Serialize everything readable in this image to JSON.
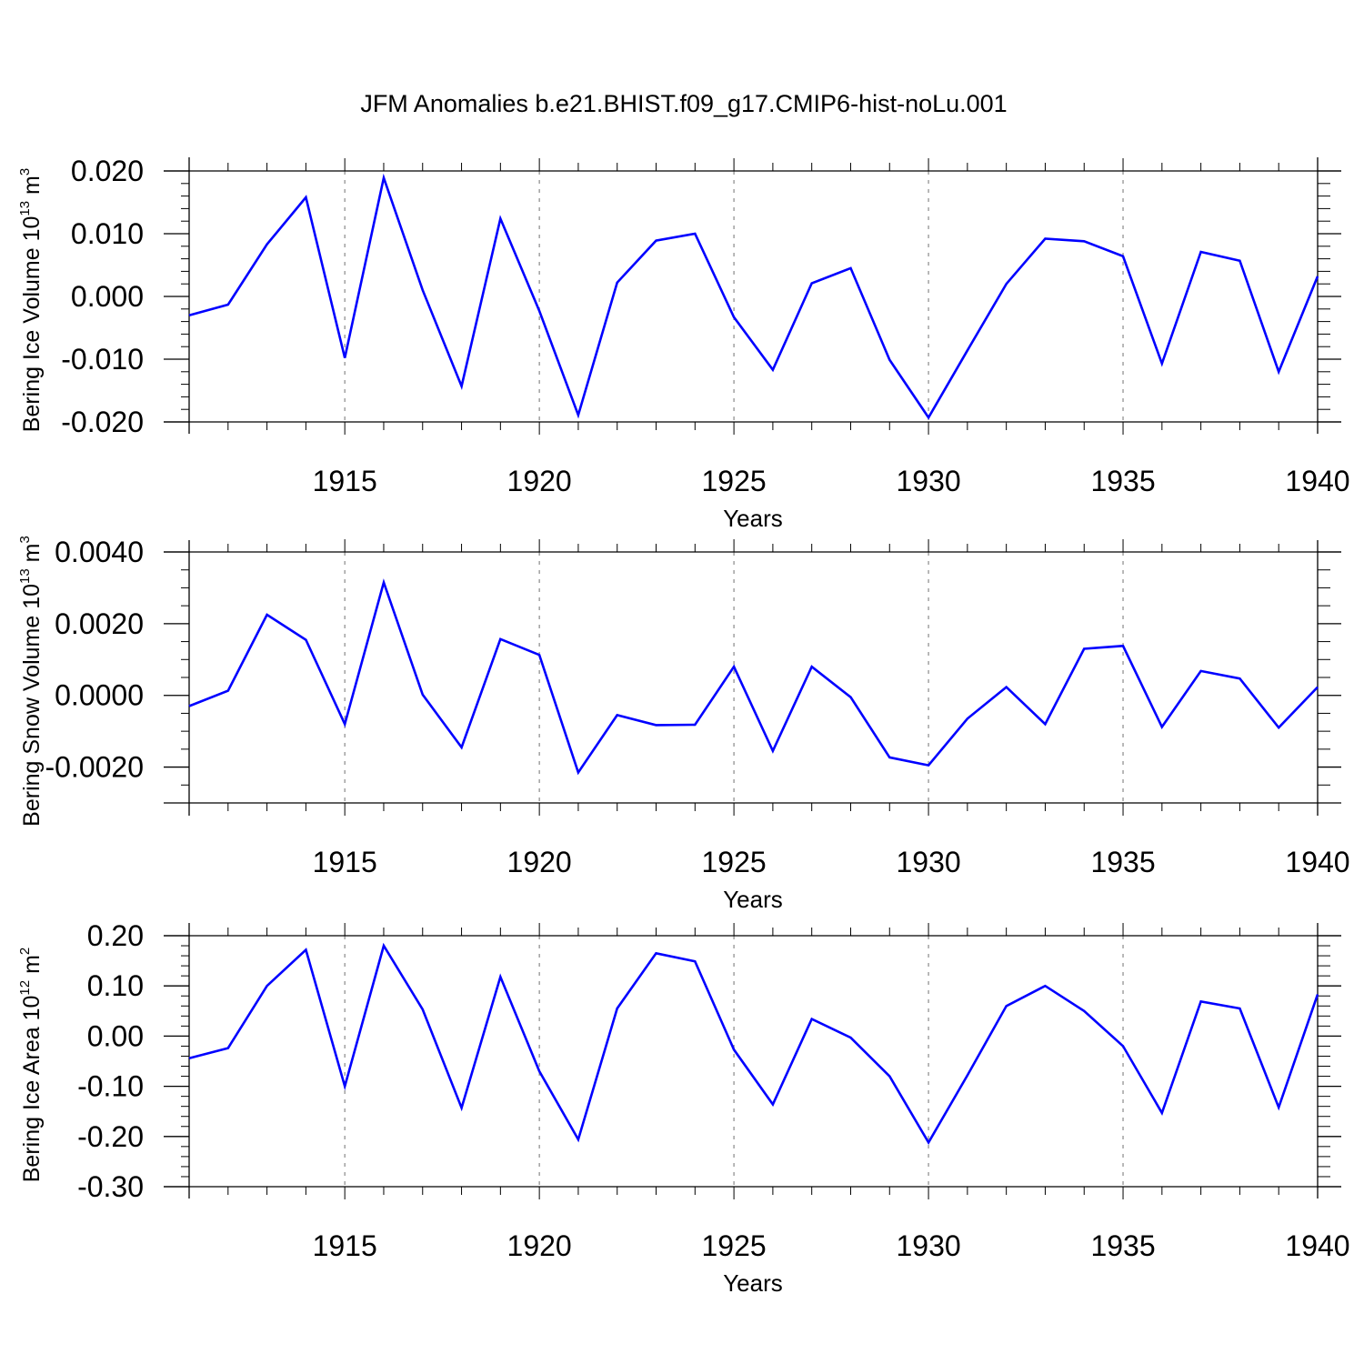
{
  "title": "JFM Anomalies b.e21.BHIST.f09_g17.CMIP6-hist-noLu.001",
  "colors": {
    "line": "#0000ff",
    "axis": "#000000",
    "grid": "#8a8a8a",
    "background": "#ffffff"
  },
  "chart_data": [
    {
      "type": "line",
      "ylabel": {
        "text": "Bering Ice Volume 10",
        "exp": "13",
        "unit": " m",
        "unit_exp": "3"
      },
      "xlabel": "Years",
      "xlim": [
        1911,
        1940
      ],
      "ylim": [
        -0.02,
        0.02
      ],
      "xticks": [
        1915,
        1920,
        1925,
        1930,
        1935,
        1940
      ],
      "xtick_labels": [
        "1915",
        "1920",
        "1925",
        "1930",
        "1935",
        "1940"
      ],
      "yticks": [
        0.02,
        0.01,
        0.0,
        -0.01,
        -0.02
      ],
      "ytick_labels": [
        "0.020",
        "0.010",
        "0.000",
        "-0.010",
        "-0.020"
      ],
      "y_minor_step": 0.002,
      "grid": "vertical-dashed",
      "series": [
        {
          "name": "ice volume",
          "x": [
            1911,
            1912,
            1913,
            1914,
            1915,
            1916,
            1917,
            1918,
            1919,
            1920,
            1921,
            1922,
            1923,
            1924,
            1925,
            1926,
            1927,
            1928,
            1929,
            1930,
            1931,
            1932,
            1933,
            1934,
            1935,
            1936,
            1937,
            1938,
            1939,
            1940
          ],
          "values": [
            -0.003,
            -0.0013,
            0.0083,
            0.0158,
            -0.0098,
            0.0189,
            0.001,
            -0.0143,
            0.0124,
            -0.0023,
            -0.0189,
            0.0022,
            0.0089,
            0.01,
            -0.0033,
            -0.0117,
            0.0021,
            0.0045,
            -0.0101,
            -0.0193,
            -0.0086,
            0.002,
            0.0092,
            0.0088,
            0.0064,
            -0.0107,
            0.0071,
            0.0057,
            -0.012,
            0.0032
          ]
        }
      ]
    },
    {
      "type": "line",
      "ylabel": {
        "text": "Bering Snow Volume 10",
        "exp": "13",
        "unit": " m",
        "unit_exp": "3"
      },
      "xlabel": "Years",
      "xlim": [
        1911,
        1940
      ],
      "ylim": [
        -0.003,
        0.004
      ],
      "xticks": [
        1915,
        1920,
        1925,
        1930,
        1935,
        1940
      ],
      "xtick_labels": [
        "1915",
        "1920",
        "1925",
        "1930",
        "1935",
        "1940"
      ],
      "yticks": [
        0.004,
        0.002,
        0.0,
        -0.002
      ],
      "ytick_labels": [
        "0.0040",
        "0.0020",
        "0.0000",
        "-0.0020"
      ],
      "y_minor_step": 0.0005,
      "grid": "vertical-dashed",
      "series": [
        {
          "name": "snow volume",
          "x": [
            1911,
            1912,
            1913,
            1914,
            1915,
            1916,
            1917,
            1918,
            1919,
            1920,
            1921,
            1922,
            1923,
            1924,
            1925,
            1926,
            1927,
            1928,
            1929,
            1930,
            1931,
            1932,
            1933,
            1934,
            1935,
            1936,
            1937,
            1938,
            1939,
            1940
          ],
          "values": [
            -0.0003,
            0.00013,
            0.00225,
            0.00155,
            -0.0008,
            0.00315,
            2e-05,
            -0.00145,
            0.00157,
            0.00113,
            -0.00215,
            -0.00055,
            -0.00083,
            -0.00082,
            0.0008,
            -0.00155,
            0.0008,
            -5e-05,
            -0.00173,
            -0.00195,
            -0.00065,
            0.00023,
            -0.0008,
            0.0013,
            0.00138,
            -0.00088,
            0.00068,
            0.00047,
            -0.0009,
            0.00023
          ]
        }
      ]
    },
    {
      "type": "line",
      "ylabel": {
        "text": "Bering Ice Area 10",
        "exp": "12",
        "unit": " m",
        "unit_exp": "2"
      },
      "xlabel": "Years",
      "xlim": [
        1911,
        1940
      ],
      "ylim": [
        -0.3,
        0.2
      ],
      "xticks": [
        1915,
        1920,
        1925,
        1930,
        1935,
        1940
      ],
      "xtick_labels": [
        "1915",
        "1920",
        "1925",
        "1930",
        "1935",
        "1940"
      ],
      "yticks": [
        0.2,
        0.1,
        0.0,
        -0.1,
        -0.2,
        -0.3
      ],
      "ytick_labels": [
        "0.20",
        "0.10",
        "0.00",
        "-0.10",
        "-0.20",
        "-0.30"
      ],
      "y_minor_step": 0.02,
      "grid": "vertical-dashed",
      "series": [
        {
          "name": "ice area",
          "x": [
            1911,
            1912,
            1913,
            1914,
            1915,
            1916,
            1917,
            1918,
            1919,
            1920,
            1921,
            1922,
            1923,
            1924,
            1925,
            1926,
            1927,
            1928,
            1929,
            1930,
            1931,
            1932,
            1933,
            1934,
            1935,
            1936,
            1937,
            1938,
            1939,
            1940
          ],
          "values": [
            -0.044,
            -0.024,
            0.1,
            0.172,
            -0.1,
            0.18,
            0.053,
            -0.143,
            0.118,
            -0.07,
            -0.206,
            0.055,
            0.165,
            0.149,
            -0.027,
            -0.136,
            0.034,
            -0.003,
            -0.08,
            -0.212,
            -0.078,
            0.06,
            0.1,
            0.05,
            -0.02,
            -0.153,
            0.069,
            0.055,
            -0.142,
            0.083
          ]
        }
      ]
    }
  ]
}
